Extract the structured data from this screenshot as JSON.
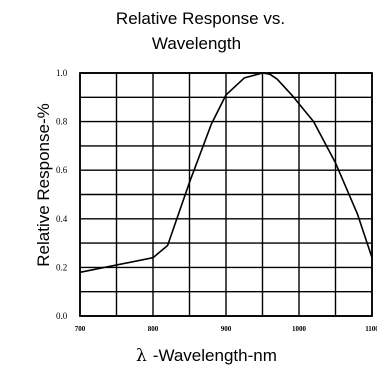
{
  "chart_data": {
    "type": "line",
    "title_line1": "Relative Response vs.",
    "title_line2": "Wavelength",
    "ylabel": "Relative Response-%",
    "xlabel_symbol": "λ",
    "xlabel": "-Wavelength-nm",
    "xlim": [
      700,
      1100
    ],
    "ylim": [
      0.0,
      1.0
    ],
    "x_ticks": [
      "700",
      "800",
      "900",
      "1000",
      "1100"
    ],
    "y_ticks": [
      "0.0",
      "0.2",
      "0.4",
      "0.6",
      "0.8",
      "1.0"
    ],
    "grid": true,
    "series": [
      {
        "x": [
          700,
          800,
          820,
          850,
          880,
          900,
          925,
          950,
          960,
          970,
          990,
          1020,
          1050,
          1080,
          1100
        ],
        "y": [
          0.18,
          0.24,
          0.29,
          0.55,
          0.79,
          0.91,
          0.98,
          1.0,
          0.995,
          0.975,
          0.91,
          0.8,
          0.63,
          0.42,
          0.24
        ]
      }
    ]
  }
}
